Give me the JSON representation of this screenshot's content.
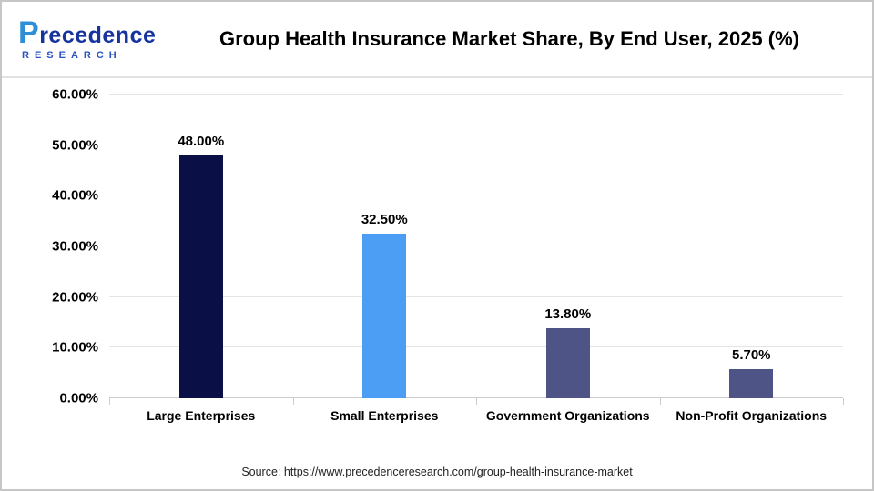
{
  "logo": {
    "name": "Precedence",
    "sub": "RESEARCH"
  },
  "source": "Source: https://www.precedenceresearch.com/group-health-insurance-market",
  "chart_data": {
    "type": "bar",
    "title": "Group Health Insurance Market Share, By End User, 2025 (%)",
    "categories": [
      "Large Enterprises",
      "Small Enterprises",
      "Government Organizations",
      "Non-Profit Organizations"
    ],
    "values": [
      48.0,
      32.5,
      13.8,
      5.7
    ],
    "value_labels": [
      "48.00%",
      "32.50%",
      "13.80%",
      "5.70%"
    ],
    "bar_colors": [
      "#0a1045",
      "#4b9ef3",
      "#4e5486",
      "#4e5486"
    ],
    "xlabel": "",
    "ylabel": "",
    "ylim": [
      0,
      60
    ],
    "yticks": [
      0,
      10,
      20,
      30,
      40,
      50,
      60
    ],
    "ytick_labels": [
      "0.00%",
      "10.00%",
      "20.00%",
      "30.00%",
      "40.00%",
      "50.00%",
      "60.00%"
    ],
    "grid": "horizontal",
    "legend": "none"
  }
}
